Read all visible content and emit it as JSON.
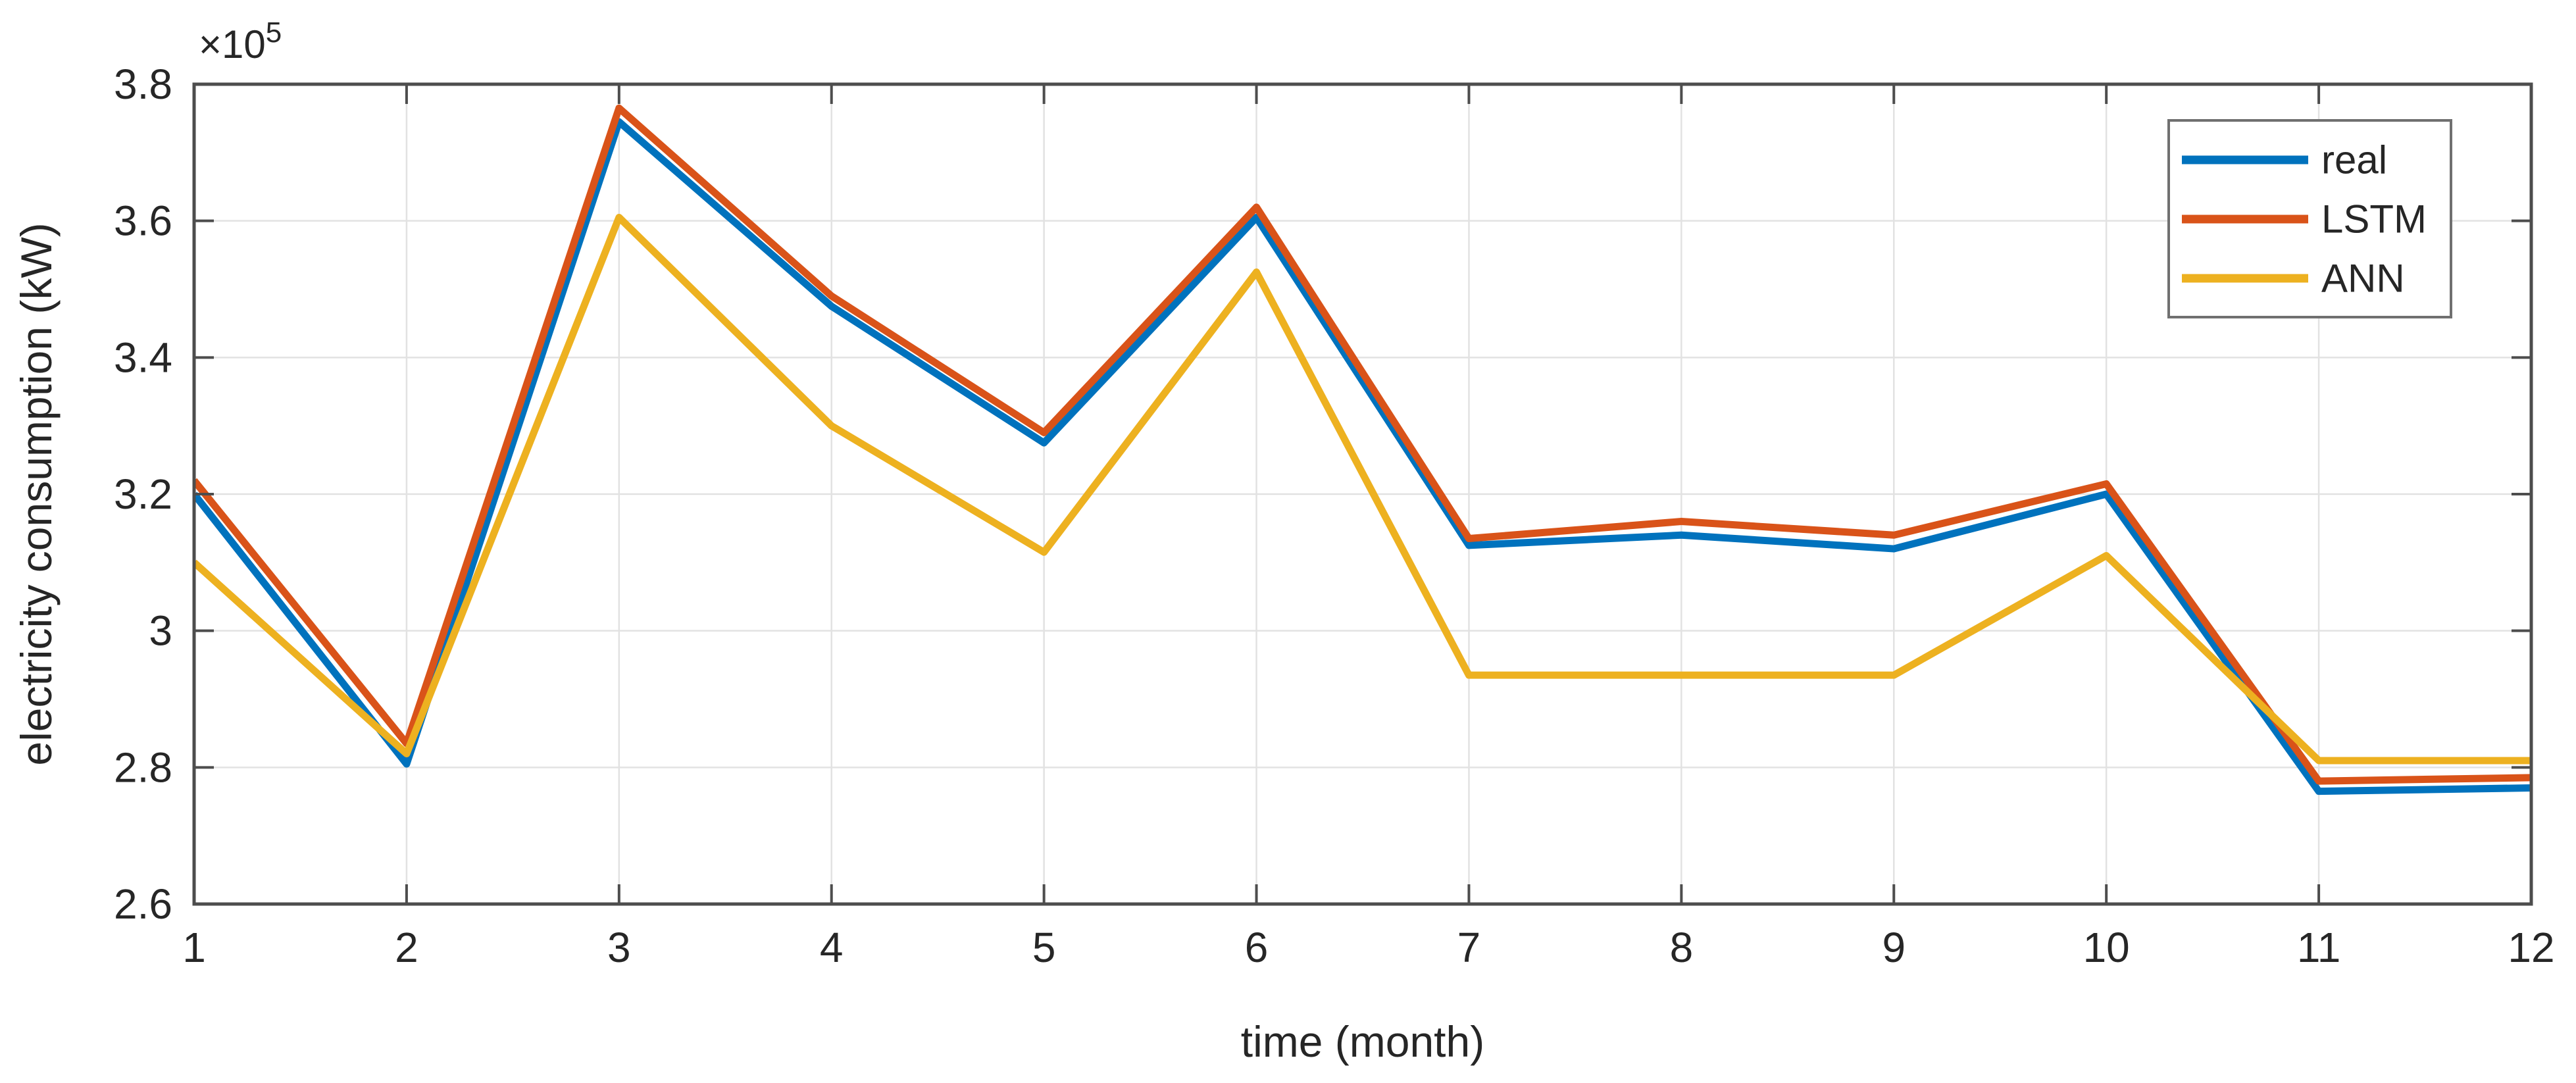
{
  "chart_data": {
    "type": "line",
    "title": "",
    "xlabel": "time (month)",
    "ylabel": "electricity consumption (kW)",
    "y_offset_label": {
      "base": "×10",
      "exponent": "5"
    },
    "y_unit_multiplier": 100000,
    "x": [
      1,
      2,
      3,
      4,
      5,
      6,
      7,
      8,
      9,
      10,
      11,
      12
    ],
    "x_tick_labels": [
      "1",
      "2",
      "3",
      "4",
      "5",
      "6",
      "7",
      "8",
      "9",
      "10",
      "11",
      "12"
    ],
    "y_ticks": [
      2.6,
      2.8,
      3.0,
      3.2,
      3.4,
      3.6,
      3.8
    ],
    "y_tick_labels": [
      "2.6",
      "2.8",
      "3",
      "3.2",
      "3.4",
      "3.6",
      "3.8"
    ],
    "xlim": [
      1,
      12
    ],
    "ylim": [
      2.6,
      3.8
    ],
    "grid": true,
    "legend_position": "top-right",
    "series": [
      {
        "name": "real",
        "color": "#0072BD",
        "values": [
          3.2,
          2.805,
          3.745,
          3.475,
          3.275,
          3.605,
          3.125,
          3.14,
          3.12,
          3.2,
          2.765,
          2.77
        ]
      },
      {
        "name": "LSTM",
        "color": "#D95319",
        "values": [
          3.22,
          2.835,
          3.765,
          3.49,
          3.29,
          3.62,
          3.135,
          3.16,
          3.14,
          3.215,
          2.78,
          2.785
        ]
      },
      {
        "name": "ANN",
        "color": "#EDB120",
        "values": [
          3.1,
          2.82,
          3.605,
          3.3,
          3.115,
          3.525,
          2.935,
          2.935,
          2.935,
          3.11,
          2.81,
          2.81
        ]
      }
    ]
  },
  "styles": {
    "background": "#ffffff",
    "axis_color": "#4d4d4d",
    "grid_color": "#e2e2e2",
    "text_color": "#262626",
    "legend_border_color": "#707070"
  }
}
